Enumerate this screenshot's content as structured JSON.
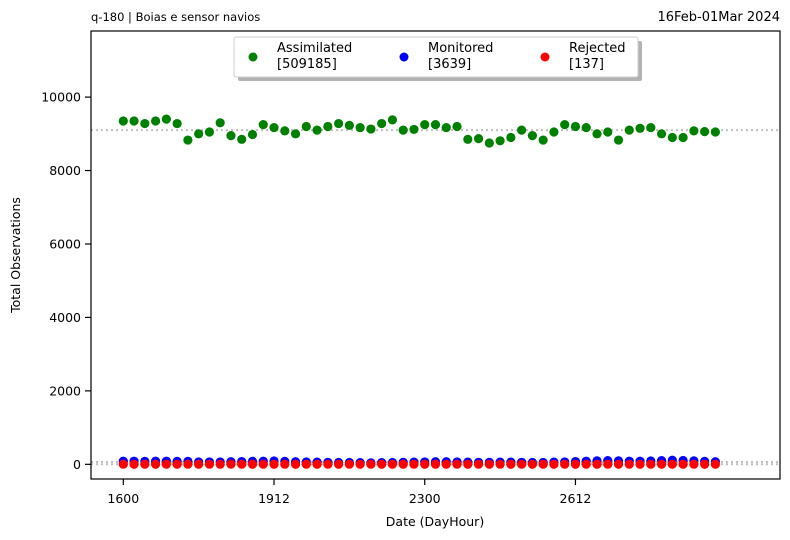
{
  "chart_data": {
    "type": "scatter",
    "title_left": "q-180  |  Boias e sensor navios",
    "title_right": "16Feb-01Mar 2024",
    "xlabel": "Date (DayHour)",
    "ylabel": "Total Observations",
    "xlim": [
      -3,
      61
    ],
    "ylim": [
      -400,
      11800
    ],
    "x_ticks": [
      {
        "value": 0,
        "label": "1600"
      },
      {
        "value": 14,
        "label": "1912"
      },
      {
        "value": 28,
        "label": "2300"
      },
      {
        "value": 42,
        "label": "2612"
      }
    ],
    "y_ticks": [
      {
        "value": 0,
        "label": "0"
      },
      {
        "value": 2000,
        "label": "2000"
      },
      {
        "value": 4000,
        "label": "4000"
      },
      {
        "value": 6000,
        "label": "6000"
      },
      {
        "value": 8000,
        "label": "8000"
      },
      {
        "value": 10000,
        "label": "10000"
      }
    ],
    "reference_lines": [
      {
        "series": "Assimilated",
        "value": 9100
      },
      {
        "series": "Monitored",
        "value": 62
      },
      {
        "series": "Rejected",
        "value": 3
      }
    ],
    "x": [
      0,
      1,
      2,
      3,
      4,
      5,
      6,
      7,
      8,
      9,
      10,
      11,
      12,
      13,
      14,
      15,
      16,
      17,
      18,
      19,
      20,
      21,
      22,
      23,
      24,
      25,
      26,
      27,
      28,
      29,
      30,
      31,
      32,
      33,
      34,
      35,
      36,
      37,
      38,
      39,
      40,
      41,
      42,
      43,
      44,
      45,
      46,
      47,
      48,
      49,
      50,
      51,
      52,
      53,
      54,
      55
    ],
    "series": [
      {
        "name": "Assimilated",
        "legend_count": "[509185]",
        "color": "#008000",
        "values": [
          9350,
          9350,
          9280,
          9350,
          9400,
          9280,
          8830,
          9000,
          9050,
          9300,
          8950,
          8850,
          8980,
          9250,
          9170,
          9080,
          9000,
          9200,
          9100,
          9200,
          9280,
          9230,
          9170,
          9130,
          9280,
          9380,
          9100,
          9120,
          9250,
          9250,
          9170,
          9200,
          8850,
          8870,
          8750,
          8810,
          8900,
          9100,
          8950,
          8830,
          9050,
          9250,
          9200,
          9170,
          9000,
          9050,
          8830,
          9100,
          9150,
          9170,
          9000,
          8900,
          8900,
          9080,
          9060,
          9050
        ]
      },
      {
        "name": "Monitored",
        "legend_count": "[3639]",
        "color": "#0000ff",
        "values": [
          85,
          85,
          80,
          85,
          85,
          80,
          80,
          65,
          65,
          65,
          70,
          75,
          80,
          85,
          90,
          80,
          70,
          65,
          60,
          55,
          50,
          50,
          45,
          40,
          45,
          50,
          55,
          60,
          65,
          70,
          70,
          65,
          60,
          55,
          55,
          60,
          60,
          55,
          50,
          50,
          60,
          65,
          75,
          85,
          95,
          100,
          95,
          85,
          85,
          90,
          100,
          110,
          105,
          95,
          80,
          70
        ]
      },
      {
        "name": "Rejected",
        "legend_count": "[137]",
        "color": "#ff0000",
        "values": [
          3,
          2,
          3,
          2,
          3,
          2,
          3,
          2,
          3,
          2,
          5,
          3,
          2,
          3,
          2,
          3,
          2,
          3,
          2,
          3,
          2,
          3,
          2,
          3,
          2,
          3,
          2,
          3,
          2,
          3,
          2,
          3,
          2,
          3,
          2,
          3,
          2,
          3,
          2,
          3,
          2,
          3,
          2,
          3,
          2,
          3,
          2,
          3,
          2,
          3,
          2,
          3,
          2,
          3,
          2,
          3
        ]
      }
    ]
  }
}
